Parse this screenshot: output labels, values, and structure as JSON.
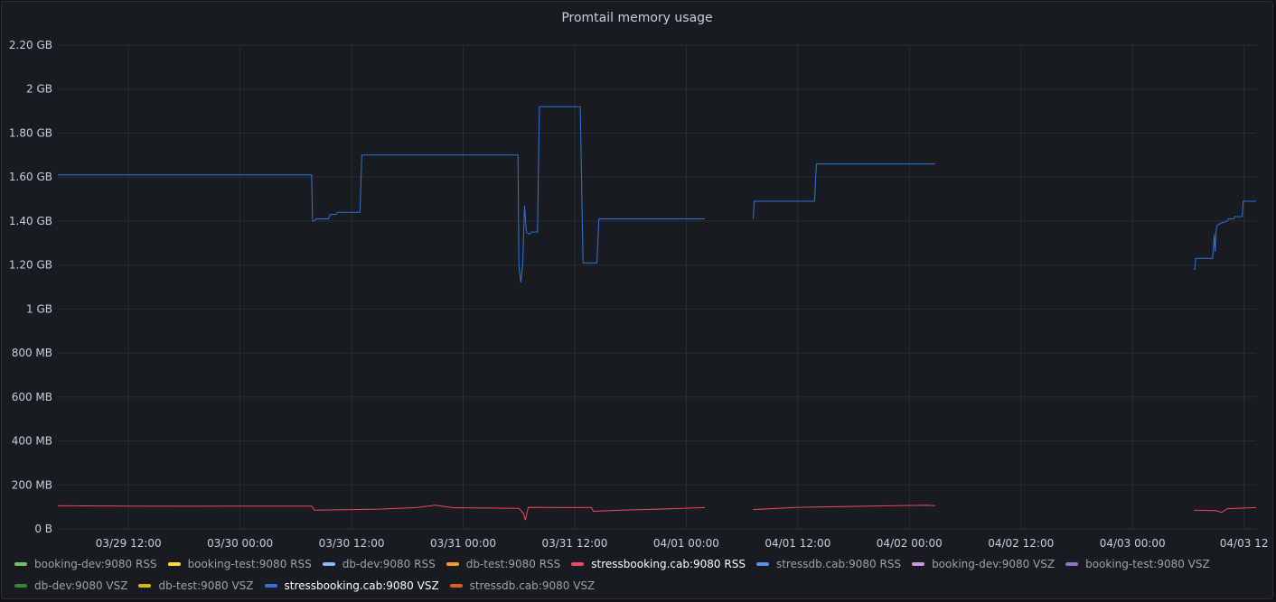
{
  "panel": {
    "title": "Promtail memory usage"
  },
  "chart_data": {
    "type": "line",
    "title": "Promtail memory usage",
    "x_range": [
      "03/29 05:00",
      "04/03 12:30"
    ],
    "y_range": [
      0,
      2.2
    ],
    "y_unit": "GB",
    "y_ticks": [
      {
        "value": 0,
        "label": "0 B"
      },
      {
        "value": 0.2,
        "label": "200 MB"
      },
      {
        "value": 0.4,
        "label": "400 MB"
      },
      {
        "value": 0.6,
        "label": "600 MB"
      },
      {
        "value": 0.8,
        "label": "800 MB"
      },
      {
        "value": 1.0,
        "label": "1 GB"
      },
      {
        "value": 1.2,
        "label": "1.20 GB"
      },
      {
        "value": 1.4,
        "label": "1.40 GB"
      },
      {
        "value": 1.6,
        "label": "1.60 GB"
      },
      {
        "value": 1.8,
        "label": "1.80 GB"
      },
      {
        "value": 2.0,
        "label": "2 GB"
      },
      {
        "value": 2.2,
        "label": "2.20 GB"
      }
    ],
    "x_ticks": [
      {
        "hour": 31,
        "label": "03/29 12:00"
      },
      {
        "hour": 43,
        "label": "03/30 00:00"
      },
      {
        "hour": 55,
        "label": "03/30 12:00"
      },
      {
        "hour": 67,
        "label": "03/31 00:00"
      },
      {
        "hour": 79,
        "label": "03/31 12:00"
      },
      {
        "hour": 91,
        "label": "04/01 00:00"
      },
      {
        "hour": 103,
        "label": "04/01 12:00"
      },
      {
        "hour": 115,
        "label": "04/02 00:00"
      },
      {
        "hour": 127,
        "label": "04/02 12:00"
      },
      {
        "hour": 139,
        "label": "04/03 00:00"
      },
      {
        "hour": 151,
        "label": "04/03 12"
      }
    ],
    "x_min_hour": 23.4,
    "x_max_hour": 152.3,
    "grid": true,
    "legend_placement": "bottom",
    "series": [
      {
        "name": "booking-dev:9080 RSS",
        "color": "#73bf69",
        "values": []
      },
      {
        "name": "booking-test:9080 RSS",
        "color": "#fade2a",
        "values": []
      },
      {
        "name": "db-dev:9080 RSS",
        "color": "#8ab8ff",
        "values": []
      },
      {
        "name": "db-test:9080 RSS",
        "color": "#ff9830",
        "values": []
      },
      {
        "name": "stressbooking.cab:9080 RSS",
        "color": "#f2495c",
        "active": true,
        "values": [
          [
            [
              23.4,
              0.105
            ],
            [
              30,
              0.104
            ],
            [
              38,
              0.103
            ],
            [
              45,
              0.104
            ],
            [
              50.7,
              0.104
            ],
            [
              51,
              0.085
            ],
            [
              54,
              0.087
            ],
            [
              58,
              0.09
            ],
            [
              62,
              0.097
            ],
            [
              64,
              0.108
            ],
            [
              66,
              0.096
            ],
            [
              73,
              0.093
            ],
            [
              73.5,
              0.07
            ],
            [
              73.7,
              0.04
            ],
            [
              74,
              0.098
            ],
            [
              78,
              0.097
            ],
            [
              80,
              0.097
            ],
            [
              80.8,
              0.097
            ],
            [
              81,
              0.08
            ],
            [
              84,
              0.085
            ],
            [
              88,
              0.09
            ],
            [
              91,
              0.094
            ],
            [
              93,
              0.097
            ]
          ],
          [
            [
              98.2,
              0.088
            ],
            [
              103,
              0.098
            ],
            [
              110,
              0.103
            ],
            [
              117,
              0.108
            ],
            [
              117.8,
              0.106
            ]
          ],
          [
            [
              145.6,
              0.085
            ],
            [
              148,
              0.083
            ],
            [
              148.6,
              0.075
            ],
            [
              149.2,
              0.092
            ],
            [
              151,
              0.095
            ],
            [
              152.3,
              0.097
            ]
          ]
        ]
      },
      {
        "name": "stressdb.cab:9080 RSS",
        "color": "#5794f2",
        "values": []
      },
      {
        "name": "booking-dev:9080 VSZ",
        "color": "#ca95e5",
        "values": []
      },
      {
        "name": "booking-test:9080 VSZ",
        "color": "#8f77be",
        "values": []
      },
      {
        "name": "db-dev:9080 VSZ",
        "color": "#37872d",
        "values": []
      },
      {
        "name": "db-test:9080 VSZ",
        "color": "#e0b400",
        "values": []
      },
      {
        "name": "stressbooking.cab:9080 VSZ",
        "color": "#3274d9",
        "active": true,
        "values": [
          [
            [
              23.4,
              1.61
            ],
            [
              50.7,
              1.61
            ],
            [
              50.8,
              1.4
            ],
            [
              51,
              1.4
            ],
            [
              51.2,
              1.41
            ],
            [
              52.5,
              1.41
            ],
            [
              52.7,
              1.43
            ],
            [
              53.3,
              1.43
            ],
            [
              53.5,
              1.44
            ],
            [
              55.9,
              1.44
            ],
            [
              56.1,
              1.7
            ],
            [
              72.9,
              1.7
            ],
            [
              73.0,
              1.2
            ],
            [
              73.2,
              1.12
            ],
            [
              73.4,
              1.2
            ],
            [
              73.6,
              1.47
            ],
            [
              73.8,
              1.35
            ],
            [
              74.1,
              1.34
            ],
            [
              74.4,
              1.35
            ],
            [
              75.0,
              1.35
            ],
            [
              75.2,
              1.92
            ],
            [
              79.6,
              1.92
            ],
            [
              79.9,
              1.21
            ],
            [
              81.4,
              1.21
            ],
            [
              81.6,
              1.41
            ],
            [
              93.0,
              1.41
            ]
          ],
          [
            [
              98.2,
              1.41
            ],
            [
              98.3,
              1.49
            ],
            [
              104.8,
              1.49
            ],
            [
              105.0,
              1.66
            ],
            [
              117.8,
              1.66
            ]
          ],
          [
            [
              145.6,
              1.18
            ],
            [
              145.7,
              1.18
            ],
            [
              145.8,
              1.23
            ],
            [
              147.6,
              1.23
            ],
            [
              147.7,
              1.27
            ],
            [
              147.8,
              1.34
            ],
            [
              147.9,
              1.26
            ],
            [
              148.0,
              1.36
            ],
            [
              148.1,
              1.38
            ],
            [
              148.5,
              1.39
            ],
            [
              149.2,
              1.4
            ],
            [
              149.3,
              1.41
            ],
            [
              149.9,
              1.41
            ],
            [
              150.0,
              1.42
            ],
            [
              150.5,
              1.42
            ],
            [
              150.8,
              1.42
            ],
            [
              150.9,
              1.49
            ],
            [
              152.3,
              1.49
            ]
          ]
        ]
      },
      {
        "name": "stressdb.cab:9080 VSZ",
        "color": "#e55b21",
        "values": []
      }
    ]
  }
}
